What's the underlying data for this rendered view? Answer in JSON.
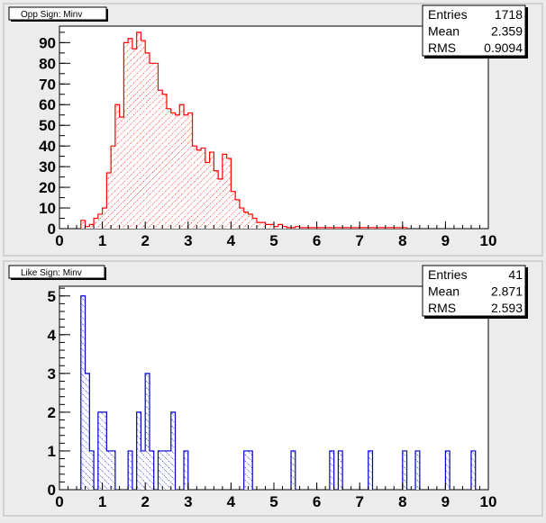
{
  "chart_data": [
    {
      "type": "bar",
      "title": "Opp Sign: Minv",
      "xlabel": "",
      "ylabel": "",
      "xlim": [
        0,
        10
      ],
      "ylim": [
        0,
        98
      ],
      "bin_width": 0.1,
      "x_ticks": [
        0,
        1,
        2,
        3,
        4,
        5,
        6,
        7,
        8,
        9,
        10
      ],
      "y_ticks": [
        0,
        10,
        20,
        30,
        40,
        50,
        60,
        70,
        80,
        90
      ],
      "line_color": "#ff0000",
      "fill_color": "#ff0000",
      "stats": [
        {
          "label": "Entries",
          "value": "1718"
        },
        {
          "label": "Mean",
          "value": "2.359"
        },
        {
          "label": "RMS",
          "value": "0.9094"
        }
      ],
      "bins": [
        [
          0.5,
          4
        ],
        [
          0.6,
          1
        ],
        [
          0.7,
          2
        ],
        [
          0.8,
          5
        ],
        [
          0.9,
          7
        ],
        [
          1.0,
          10
        ],
        [
          1.1,
          27
        ],
        [
          1.2,
          40
        ],
        [
          1.3,
          60
        ],
        [
          1.4,
          54
        ],
        [
          1.5,
          90
        ],
        [
          1.6,
          92
        ],
        [
          1.7,
          87
        ],
        [
          1.8,
          95
        ],
        [
          1.9,
          91
        ],
        [
          2.0,
          85
        ],
        [
          2.1,
          80
        ],
        [
          2.2,
          80
        ],
        [
          2.3,
          67
        ],
        [
          2.4,
          65
        ],
        [
          2.5,
          58
        ],
        [
          2.6,
          56
        ],
        [
          2.7,
          55
        ],
        [
          2.8,
          60
        ],
        [
          2.9,
          55
        ],
        [
          3.0,
          56
        ],
        [
          3.1,
          40
        ],
        [
          3.2,
          38
        ],
        [
          3.3,
          39
        ],
        [
          3.4,
          32
        ],
        [
          3.5,
          37
        ],
        [
          3.6,
          28
        ],
        [
          3.7,
          24
        ],
        [
          3.8,
          36
        ],
        [
          3.9,
          34
        ],
        [
          4.0,
          18
        ],
        [
          4.1,
          14
        ],
        [
          4.2,
          10
        ],
        [
          4.3,
          8
        ],
        [
          4.4,
          7
        ],
        [
          4.5,
          5
        ],
        [
          4.6,
          3
        ],
        [
          4.7,
          3
        ],
        [
          4.8,
          2
        ],
        [
          4.9,
          2
        ],
        [
          5.0,
          1
        ],
        [
          5.1,
          2
        ],
        [
          5.2,
          1
        ],
        [
          5.3,
          0.5
        ],
        [
          5.4,
          0.5
        ],
        [
          5.5,
          1
        ],
        [
          5.6,
          0.5
        ],
        [
          5.7,
          0.5
        ],
        [
          5.8,
          0.5
        ],
        [
          5.9,
          0.5
        ],
        [
          6.0,
          0.5
        ],
        [
          6.1,
          0.5
        ],
        [
          6.2,
          0.5
        ],
        [
          6.3,
          0.5
        ],
        [
          6.4,
          0.5
        ],
        [
          6.5,
          0.5
        ],
        [
          6.6,
          0.5
        ],
        [
          6.7,
          0.5
        ],
        [
          6.8,
          0.5
        ],
        [
          6.9,
          0.5
        ],
        [
          7.0,
          0.5
        ],
        [
          7.1,
          0.5
        ],
        [
          7.2,
          0.5
        ],
        [
          7.3,
          0.5
        ],
        [
          7.4,
          0.5
        ],
        [
          7.5,
          0.5
        ],
        [
          7.6,
          0.5
        ],
        [
          7.7,
          0.5
        ],
        [
          7.8,
          0.5
        ],
        [
          7.9,
          0.5
        ],
        [
          8.0,
          0.5
        ]
      ]
    },
    {
      "type": "bar",
      "title": "Like Sign: Minv",
      "xlabel": "",
      "ylabel": "",
      "xlim": [
        0,
        10
      ],
      "ylim": [
        0,
        5.25
      ],
      "bin_width": 0.1,
      "x_ticks": [
        0,
        1,
        2,
        3,
        4,
        5,
        6,
        7,
        8,
        9,
        10
      ],
      "y_ticks": [
        0,
        1,
        2,
        3,
        4,
        5
      ],
      "line_color": "#0000cc",
      "fill_color": "#0000cc",
      "stats": [
        {
          "label": "Entries",
          "value": "41"
        },
        {
          "label": "Mean",
          "value": "2.871"
        },
        {
          "label": "RMS",
          "value": "2.593"
        }
      ],
      "bins": [
        [
          0.5,
          5
        ],
        [
          0.6,
          3
        ],
        [
          0.7,
          1
        ],
        [
          0.9,
          2
        ],
        [
          1.0,
          2
        ],
        [
          1.1,
          1
        ],
        [
          1.2,
          1
        ],
        [
          1.6,
          1
        ],
        [
          1.8,
          2
        ],
        [
          1.9,
          1
        ],
        [
          2.0,
          3
        ],
        [
          2.1,
          1
        ],
        [
          2.3,
          1
        ],
        [
          2.4,
          1
        ],
        [
          2.5,
          1
        ],
        [
          2.6,
          2
        ],
        [
          2.9,
          1
        ],
        [
          4.3,
          1
        ],
        [
          4.4,
          1
        ],
        [
          5.4,
          1
        ],
        [
          6.3,
          1
        ],
        [
          6.5,
          1
        ],
        [
          7.2,
          1
        ],
        [
          8.0,
          1
        ],
        [
          8.3,
          1
        ],
        [
          9.0,
          1
        ],
        [
          9.6,
          1
        ]
      ]
    }
  ]
}
